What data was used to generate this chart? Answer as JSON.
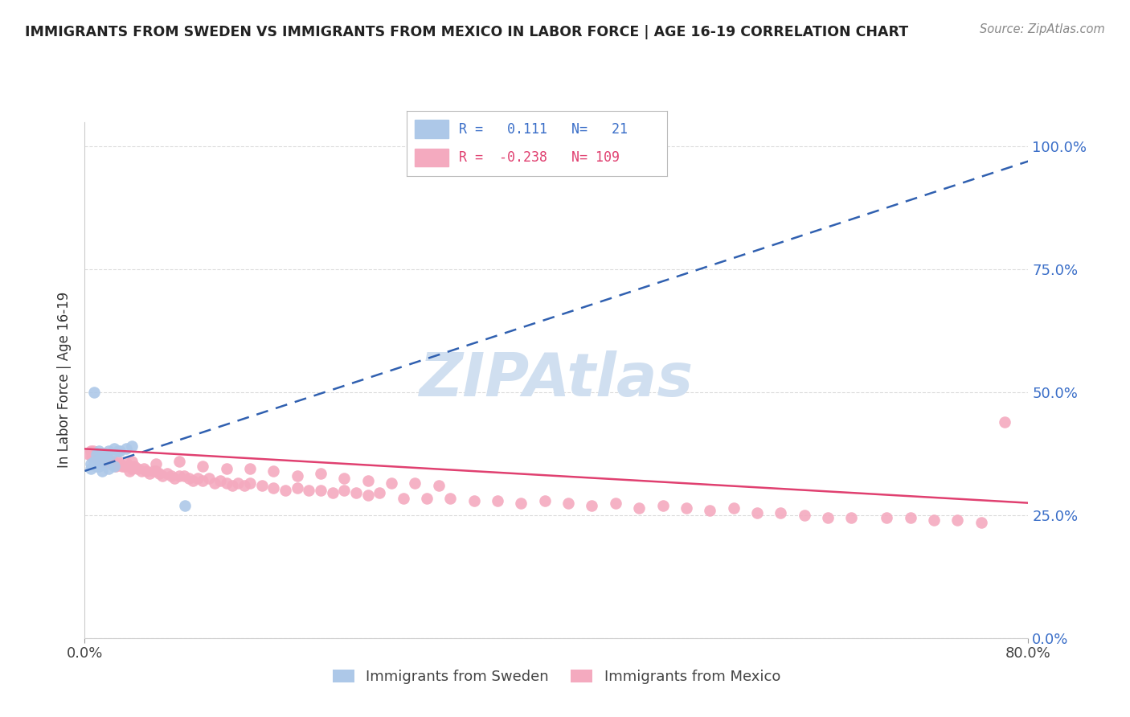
{
  "title": "IMMIGRANTS FROM SWEDEN VS IMMIGRANTS FROM MEXICO IN LABOR FORCE | AGE 16-19 CORRELATION CHART",
  "source": "Source: ZipAtlas.com",
  "ylabel": "In Labor Force | Age 16-19",
  "yticks": [
    0.0,
    0.25,
    0.5,
    0.75,
    1.0
  ],
  "ytick_labels": [
    "0.0%",
    "25.0%",
    "50.0%",
    "75.0%",
    "100.0%"
  ],
  "xlim": [
    0.0,
    0.8
  ],
  "ylim": [
    0.0,
    1.05
  ],
  "sweden_R": 0.111,
  "sweden_N": 21,
  "mexico_R": -0.238,
  "mexico_N": 109,
  "sweden_color": "#adc8e8",
  "mexico_color": "#f4aabf",
  "sweden_line_color": "#3060b0",
  "mexico_line_color": "#e04070",
  "watermark": "ZIPAtlas",
  "watermark_color": "#d0dff0",
  "legend_label_sweden": "Immigrants from Sweden",
  "legend_label_mexico": "Immigrants from Mexico",
  "sweden_trend_x": [
    0.0,
    0.8
  ],
  "sweden_trend_y": [
    0.34,
    0.97
  ],
  "mexico_trend_x": [
    0.0,
    0.8
  ],
  "mexico_trend_y": [
    0.385,
    0.275
  ],
  "sweden_x": [
    0.005,
    0.008,
    0.01,
    0.012,
    0.015,
    0.018,
    0.02,
    0.022,
    0.025,
    0.028,
    0.03,
    0.035,
    0.04,
    0.008,
    0.012,
    0.005,
    0.01,
    0.015,
    0.02,
    0.025,
    0.085
  ],
  "sweden_y": [
    0.355,
    0.36,
    0.375,
    0.38,
    0.365,
    0.37,
    0.38,
    0.375,
    0.385,
    0.38,
    0.38,
    0.385,
    0.39,
    0.5,
    0.35,
    0.345,
    0.35,
    0.34,
    0.345,
    0.35,
    0.27
  ],
  "mexico_x": [
    0.003,
    0.005,
    0.006,
    0.007,
    0.008,
    0.009,
    0.01,
    0.011,
    0.012,
    0.013,
    0.014,
    0.015,
    0.016,
    0.017,
    0.018,
    0.019,
    0.02,
    0.021,
    0.022,
    0.023,
    0.024,
    0.025,
    0.026,
    0.027,
    0.028,
    0.03,
    0.032,
    0.034,
    0.036,
    0.038,
    0.04,
    0.042,
    0.045,
    0.048,
    0.05,
    0.052,
    0.055,
    0.058,
    0.06,
    0.063,
    0.066,
    0.07,
    0.073,
    0.076,
    0.08,
    0.084,
    0.088,
    0.092,
    0.096,
    0.1,
    0.105,
    0.11,
    0.115,
    0.12,
    0.125,
    0.13,
    0.135,
    0.14,
    0.15,
    0.16,
    0.17,
    0.18,
    0.19,
    0.2,
    0.21,
    0.22,
    0.23,
    0.24,
    0.25,
    0.27,
    0.29,
    0.31,
    0.33,
    0.35,
    0.37,
    0.39,
    0.41,
    0.43,
    0.45,
    0.47,
    0.49,
    0.51,
    0.53,
    0.55,
    0.57,
    0.59,
    0.61,
    0.63,
    0.65,
    0.68,
    0.7,
    0.72,
    0.74,
    0.76,
    0.78,
    0.04,
    0.06,
    0.08,
    0.1,
    0.12,
    0.14,
    0.16,
    0.18,
    0.2,
    0.22,
    0.24,
    0.26,
    0.28,
    0.3
  ],
  "mexico_y": [
    0.375,
    0.38,
    0.37,
    0.38,
    0.375,
    0.37,
    0.375,
    0.365,
    0.37,
    0.37,
    0.36,
    0.37,
    0.365,
    0.36,
    0.365,
    0.36,
    0.365,
    0.36,
    0.355,
    0.36,
    0.36,
    0.355,
    0.35,
    0.355,
    0.36,
    0.355,
    0.35,
    0.35,
    0.355,
    0.34,
    0.345,
    0.35,
    0.345,
    0.34,
    0.345,
    0.34,
    0.335,
    0.34,
    0.34,
    0.335,
    0.33,
    0.335,
    0.33,
    0.325,
    0.33,
    0.33,
    0.325,
    0.32,
    0.325,
    0.32,
    0.325,
    0.315,
    0.32,
    0.315,
    0.31,
    0.315,
    0.31,
    0.315,
    0.31,
    0.305,
    0.3,
    0.305,
    0.3,
    0.3,
    0.295,
    0.3,
    0.295,
    0.29,
    0.295,
    0.285,
    0.285,
    0.285,
    0.28,
    0.28,
    0.275,
    0.28,
    0.275,
    0.27,
    0.275,
    0.265,
    0.27,
    0.265,
    0.26,
    0.265,
    0.255,
    0.255,
    0.25,
    0.245,
    0.245,
    0.245,
    0.245,
    0.24,
    0.24,
    0.235,
    0.44,
    0.36,
    0.355,
    0.36,
    0.35,
    0.345,
    0.345,
    0.34,
    0.33,
    0.335,
    0.325,
    0.32,
    0.315,
    0.315,
    0.31
  ]
}
